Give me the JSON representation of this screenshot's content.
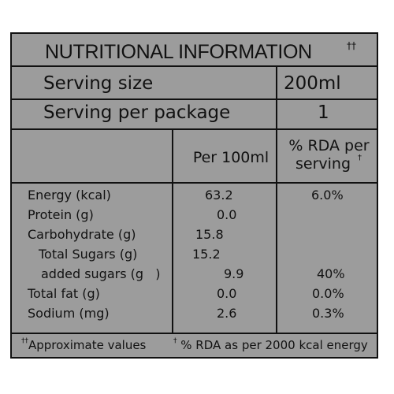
{
  "title": "NUTRITIONAL INFORMATION",
  "title_mark": "††",
  "serving_size": {
    "label": "Serving size",
    "value": "200ml"
  },
  "serving_per_package": {
    "label": "Serving per package",
    "value": "1"
  },
  "headers": {
    "per100": "Per 100ml",
    "rda_line1": "% RDA per",
    "rda_line2": "serving",
    "rda_mark": "†"
  },
  "rows": [
    {
      "name": "Energy (kcal)",
      "per100": "63.2",
      "rda": "6.0%"
    },
    {
      "name": "Protein (g)",
      "per100": "0.0",
      "rda": ""
    },
    {
      "name": "Carbohydrate (g)",
      "per100": "15.8",
      "rda": ""
    },
    {
      "name": "Total Sugars (g)",
      "per100": "15.2",
      "rda": ""
    },
    {
      "name": "added sugars (g   )",
      "per100": "9.9",
      "rda": "40%"
    },
    {
      "name": "Total fat (g)",
      "per100": "0.0",
      "rda": "0.0%"
    },
    {
      "name": "Sodium (mg)",
      "per100": "2.6",
      "rda": "0.3%"
    }
  ],
  "footer": {
    "left_mark": "††",
    "left": "Approximate values",
    "right_mark": "†",
    "right": "% RDA as per 2000 kcal energy"
  },
  "colors": {
    "panel": "#9c9c9c",
    "lines": "#111111"
  }
}
